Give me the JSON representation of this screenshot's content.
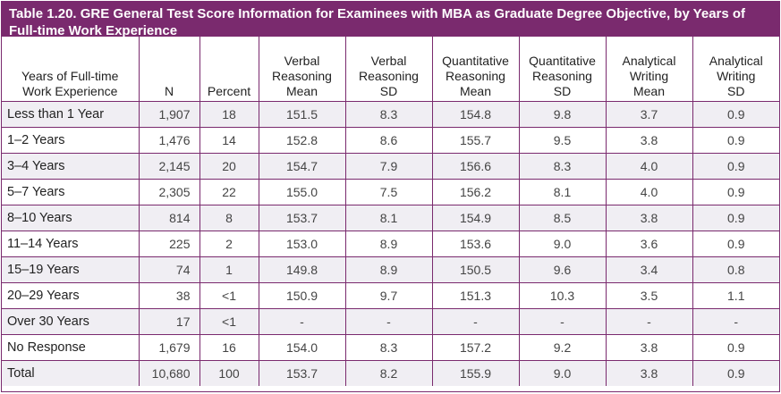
{
  "title": "Table 1.20. GRE General Test Score Information for Examinees with MBA as Graduate Degree Objective, by Years of Full-time Work Experience",
  "headers": [
    [
      "Years of Full-time",
      "Work Experience"
    ],
    [
      "N"
    ],
    [
      "Percent"
    ],
    [
      "Verbal",
      "Reasoning",
      "Mean"
    ],
    [
      "Verbal",
      "Reasoning",
      "SD"
    ],
    [
      "Quantitative",
      "Reasoning",
      "Mean"
    ],
    [
      "Quantitative",
      "Reasoning",
      "SD"
    ],
    [
      "Analytical",
      "Writing",
      "Mean"
    ],
    [
      "Analytical",
      "Writing",
      "SD"
    ]
  ],
  "rows": [
    [
      "Less than 1 Year",
      "1,907",
      "18",
      "151.5",
      "8.3",
      "154.8",
      "9.8",
      "3.7",
      "0.9"
    ],
    [
      "1–2 Years",
      "1,476",
      "14",
      "152.8",
      "8.6",
      "155.7",
      "9.5",
      "3.8",
      "0.9"
    ],
    [
      "3–4 Years",
      "2,145",
      "20",
      "154.7",
      "7.9",
      "156.6",
      "8.3",
      "4.0",
      "0.9"
    ],
    [
      "5–7 Years",
      "2,305",
      "22",
      "155.0",
      "7.5",
      "156.2",
      "8.1",
      "4.0",
      "0.9"
    ],
    [
      "8–10 Years",
      "814",
      "8",
      "153.7",
      "8.1",
      "154.9",
      "8.5",
      "3.8",
      "0.9"
    ],
    [
      "11–14 Years",
      "225",
      "2",
      "153.0",
      "8.9",
      "153.6",
      "9.0",
      "3.6",
      "0.9"
    ],
    [
      "15–19 Years",
      "74",
      "1",
      "149.8",
      "8.9",
      "150.5",
      "9.6",
      "3.4",
      "0.8"
    ],
    [
      "20–29 Years",
      "38",
      "<1",
      "150.9",
      "9.7",
      "151.3",
      "10.3",
      "3.5",
      "1.1"
    ],
    [
      "Over 30 Years",
      "17",
      "<1",
      "-",
      "-",
      "-",
      "-",
      "-",
      "-"
    ],
    [
      "No Response",
      "1,679",
      "16",
      "154.0",
      "8.3",
      "157.2",
      "9.2",
      "3.8",
      "0.9"
    ],
    [
      "Total",
      "10,680",
      "100",
      "153.7",
      "8.2",
      "155.9",
      "9.0",
      "3.8",
      "0.9"
    ]
  ],
  "colors": {
    "accent": "#7a2a6e",
    "shade": "#f0eef3"
  }
}
